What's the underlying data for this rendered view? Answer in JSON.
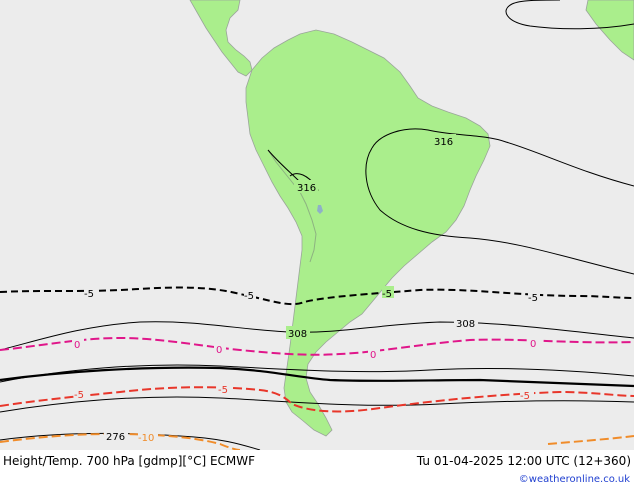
{
  "footer": {
    "title": "Height/Temp. 700 hPa [gdmp][°C] ECMWF",
    "valid_time": "Tu 01-04-2025 12:00 UTC (12+360)",
    "credit": "©weatheronline.co.uk"
  },
  "contour_labels": {
    "h316_east": "316",
    "h316_andes": "316",
    "h308_west": "308",
    "h308_east": "308",
    "h276": "276",
    "t_minus5_a": "-5",
    "t_minus5_b": "-5",
    "t_minus5_c": "-5",
    "t_minus5_d": "-5",
    "t_0_a": "0",
    "t_0_b": "0",
    "t_0_c": "0",
    "t_0_d": "0",
    "t_5_a": "-5",
    "t_5_b": "-5",
    "t_5_c": "-5",
    "t_minus10": "-10"
  },
  "colors": {
    "ocean": "#ececec",
    "land": "#aaee8c",
    "coast": "#9aa59a",
    "height_line": "#000000",
    "temp_minus5": "#000000",
    "temp_0": "#e0168a",
    "temp_5_red": "#e8362a",
    "temp_minus10": "#f08c2a"
  }
}
